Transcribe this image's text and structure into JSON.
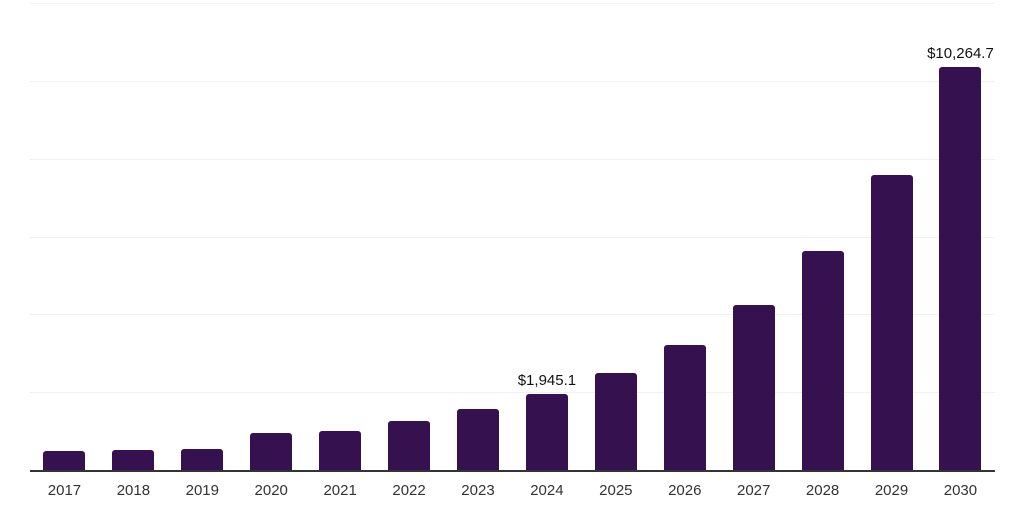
{
  "chart_data": {
    "type": "bar",
    "title": "",
    "xlabel": "",
    "ylabel": "",
    "categories": [
      "2017",
      "2018",
      "2019",
      "2020",
      "2021",
      "2022",
      "2023",
      "2024",
      "2025",
      "2026",
      "2027",
      "2028",
      "2029",
      "2030"
    ],
    "values": [
      490,
      510,
      530,
      950,
      1000,
      1240,
      1545,
      1945.1,
      2480,
      3190,
      4205,
      5590,
      7510,
      10264.7
    ],
    "labeled_points": [
      {
        "category": "2024",
        "label": "$1,945.1"
      },
      {
        "category": "2030",
        "label": "$10,264.7"
      }
    ],
    "ylim": [
      0,
      12000
    ],
    "gridline_interval": 2000,
    "grid": "horizontal",
    "legend": "none",
    "colors": {
      "bar": "#36114F",
      "axis": "#333333",
      "gridline": "#F1F1F1",
      "tick_text": "#333333",
      "value_label_text": "#111111",
      "background": "#FFFFFF"
    }
  }
}
